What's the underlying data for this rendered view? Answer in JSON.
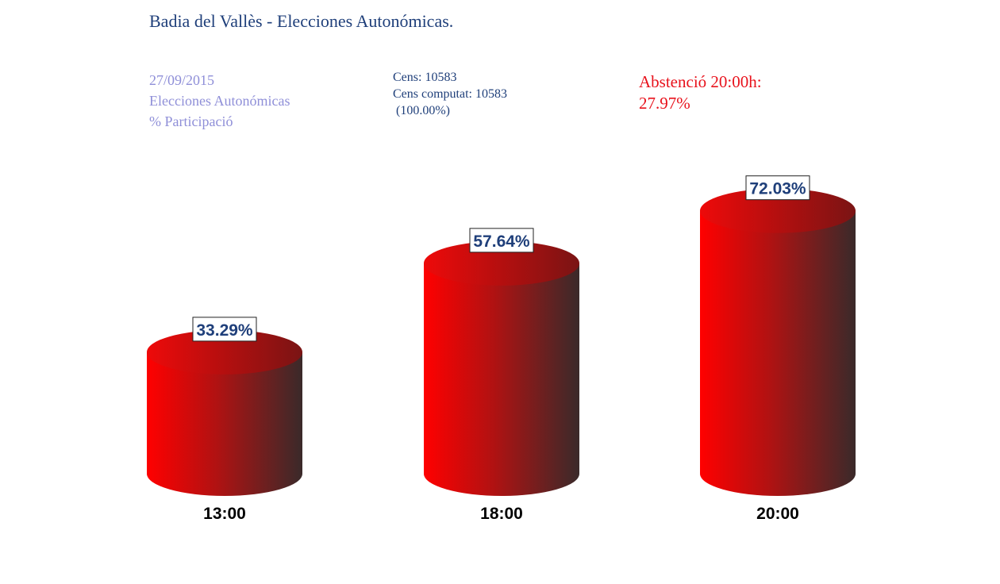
{
  "title": "Badia del Vallès - Elecciones Autonómicas.",
  "info": {
    "date": "27/09/2015",
    "election": "Elecciones Autonómicas",
    "metric": "% Participació",
    "cens": "Cens: 10583",
    "cens_computat": "Cens computat: 10583",
    "cens_percent": "(100.00%)",
    "abstention_label": "Abstenció 20:00h:",
    "abstention_value": "27.97%"
  },
  "colors": {
    "bar_light": "#ff0000",
    "bar_mid": "#b01212",
    "bar_dark": "#3a2a2a",
    "top_light": "#ee0a0a",
    "top_dark": "#7a1414",
    "label_text": "#1f3f7a"
  },
  "chart_data": {
    "type": "bar",
    "categories": [
      "13:00",
      "18:00",
      "20:00"
    ],
    "values": [
      33.29,
      57.64,
      72.03
    ],
    "value_labels": [
      "33.29%",
      "57.64%",
      "72.03%"
    ],
    "title": "",
    "xlabel": "",
    "ylabel": "",
    "ylim": [
      0,
      100
    ],
    "style": "3d-cylinder"
  }
}
